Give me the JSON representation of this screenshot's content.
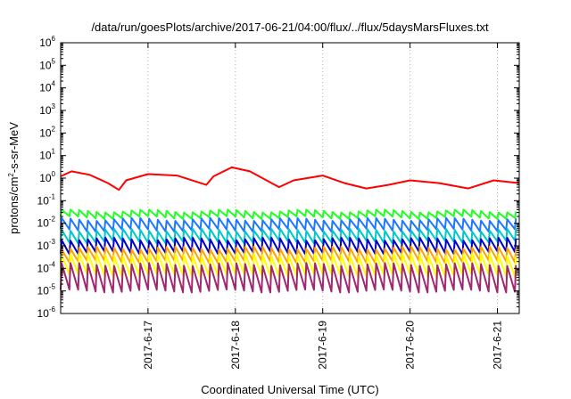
{
  "chart_data": {
    "type": "line",
    "title": "/data/run/goesPlots/archive/2017-06-21/04:00/flux/../flux/5daysMarsFluxes.txt",
    "xlabel": "Coordinated Universal Time (UTC)",
    "ylabel": "protons/cm2-s-sr-MeV",
    "ylabel_parts": {
      "base": "protons/cm",
      "sup": "2",
      "rest": "-s-sr-MeV"
    },
    "yscale": "log",
    "ylim_exp": [
      -6,
      6
    ],
    "y_tick_base": "10",
    "y_tick_exponents": [
      "-6",
      "-5",
      "-4",
      "-3",
      "-2",
      "-1",
      "0",
      "1",
      "2",
      "3",
      "4",
      "5",
      "6"
    ],
    "xlim": [
      "2017-06-16 00:00",
      "2017-06-21 06:00"
    ],
    "x_ticks": [
      "2017-6-17",
      "2017-6-18",
      "2017-6-19",
      "2017-6-20",
      "2017-6-21"
    ],
    "grid": "x-dotted",
    "sawtooth_period_hours": 2.4,
    "series": [
      {
        "color": "#ff0000",
        "jagged": false,
        "values": [
          [
            "2017-06-16 00:00",
            1.2
          ],
          [
            "2017-06-16 03:00",
            2.0
          ],
          [
            "2017-06-16 08:00",
            1.4
          ],
          [
            "2017-06-16 13:00",
            0.6
          ],
          [
            "2017-06-16 16:00",
            0.3
          ],
          [
            "2017-06-16 18:00",
            0.8
          ],
          [
            "2017-06-17 00:00",
            1.5
          ],
          [
            "2017-06-17 08:00",
            1.3
          ],
          [
            "2017-06-17 16:00",
            0.5
          ],
          [
            "2017-06-17 18:00",
            1.2
          ],
          [
            "2017-06-17 23:00",
            3.0
          ],
          [
            "2017-06-18 04:00",
            2.0
          ],
          [
            "2017-06-18 12:00",
            0.4
          ],
          [
            "2017-06-18 16:00",
            0.8
          ],
          [
            "2017-06-19 00:00",
            1.3
          ],
          [
            "2017-06-19 06:00",
            0.6
          ],
          [
            "2017-06-19 12:00",
            0.35
          ],
          [
            "2017-06-19 18:00",
            0.5
          ],
          [
            "2017-06-20 00:00",
            0.8
          ],
          [
            "2017-06-20 08:00",
            0.6
          ],
          [
            "2017-06-20 16:00",
            0.35
          ],
          [
            "2017-06-20 23:00",
            0.8
          ],
          [
            "2017-06-21 06:00",
            0.6
          ]
        ]
      },
      {
        "color": "#22ff22",
        "jagged": true,
        "low": 0.018,
        "high": 0.035
      },
      {
        "color": "#1e78ff",
        "jagged": true,
        "low": 0.005,
        "high": 0.015
      },
      {
        "color": "#00c8c8",
        "jagged": true,
        "low": 0.0015,
        "high": 0.005
      },
      {
        "color": "#0000c8",
        "jagged": true,
        "low": 0.0005,
        "high": 0.002
      },
      {
        "color": "#ffa000",
        "jagged": true,
        "low": 0.0002,
        "high": 0.0008
      },
      {
        "color": "#ffff00",
        "jagged": true,
        "low": 5e-05,
        "high": 0.0004
      },
      {
        "color": "#a0286e",
        "jagged": true,
        "low": 1e-05,
        "high": 0.00015
      }
    ]
  }
}
